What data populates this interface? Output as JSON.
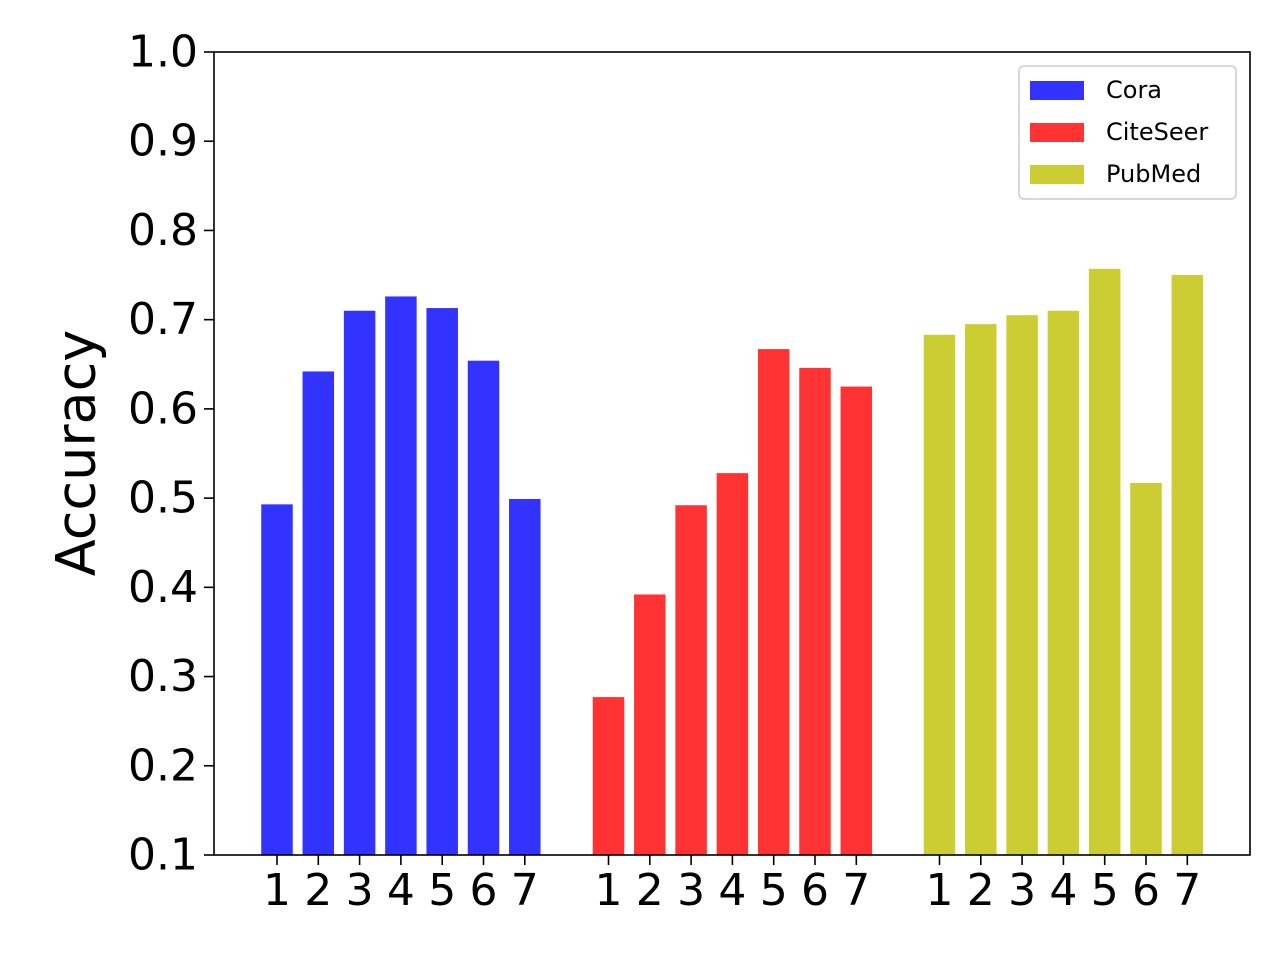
{
  "chart_data": {
    "type": "bar",
    "ylabel": "Accuracy",
    "ylim": [
      0.1,
      1.0
    ],
    "yticks": [
      0.1,
      0.2,
      0.3,
      0.4,
      0.5,
      0.6,
      0.7,
      0.8,
      0.9,
      1.0
    ],
    "ytick_labels": [
      "0.1",
      "0.2",
      "0.3",
      "0.4",
      "0.5",
      "0.6",
      "0.7",
      "0.8",
      "0.9",
      "1.0"
    ],
    "categories": [
      "1",
      "2",
      "3",
      "4",
      "5",
      "6",
      "7"
    ],
    "legend_position": "top-right",
    "grid": false,
    "series": [
      {
        "name": "Cora",
        "color": "#3333ff",
        "values": [
          0.493,
          0.642,
          0.71,
          0.726,
          0.713,
          0.654,
          0.499
        ]
      },
      {
        "name": "CiteSeer",
        "color": "#ff3333",
        "values": [
          0.277,
          0.392,
          0.492,
          0.528,
          0.667,
          0.646,
          0.625
        ]
      },
      {
        "name": "PubMed",
        "color": "#cccc33",
        "values": [
          0.683,
          0.695,
          0.705,
          0.71,
          0.757,
          0.517,
          0.75
        ]
      }
    ]
  }
}
